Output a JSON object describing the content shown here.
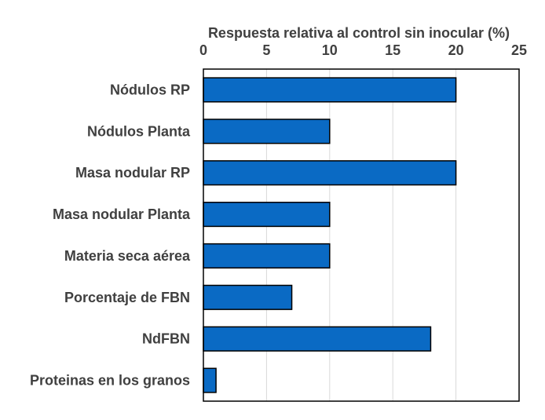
{
  "chart_data": {
    "type": "bar",
    "orientation": "horizontal",
    "title": "",
    "xlabel": "Respuesta relativa al control sin inocular (%)",
    "ylabel": "",
    "xlim": [
      0,
      25
    ],
    "x_ticks": [
      0,
      5,
      10,
      15,
      20,
      25
    ],
    "x_axis_position": "top",
    "grid": "vertical",
    "legend": "none",
    "categories": [
      "Nódulos RP",
      "Nódulos Planta",
      "Masa nodular RP",
      "Masa nodular Planta",
      "Materia seca aérea",
      "Porcentaje de FBN",
      "NdFBN",
      "Proteinas en los granos"
    ],
    "values": [
      20,
      10,
      20,
      10,
      10,
      7,
      18,
      1
    ],
    "colors": {
      "bar_fill": "#0a6ac4",
      "bar_stroke": "#000000",
      "grid": "#d9d9d9",
      "frame": "#000000",
      "text": "#404040"
    }
  }
}
